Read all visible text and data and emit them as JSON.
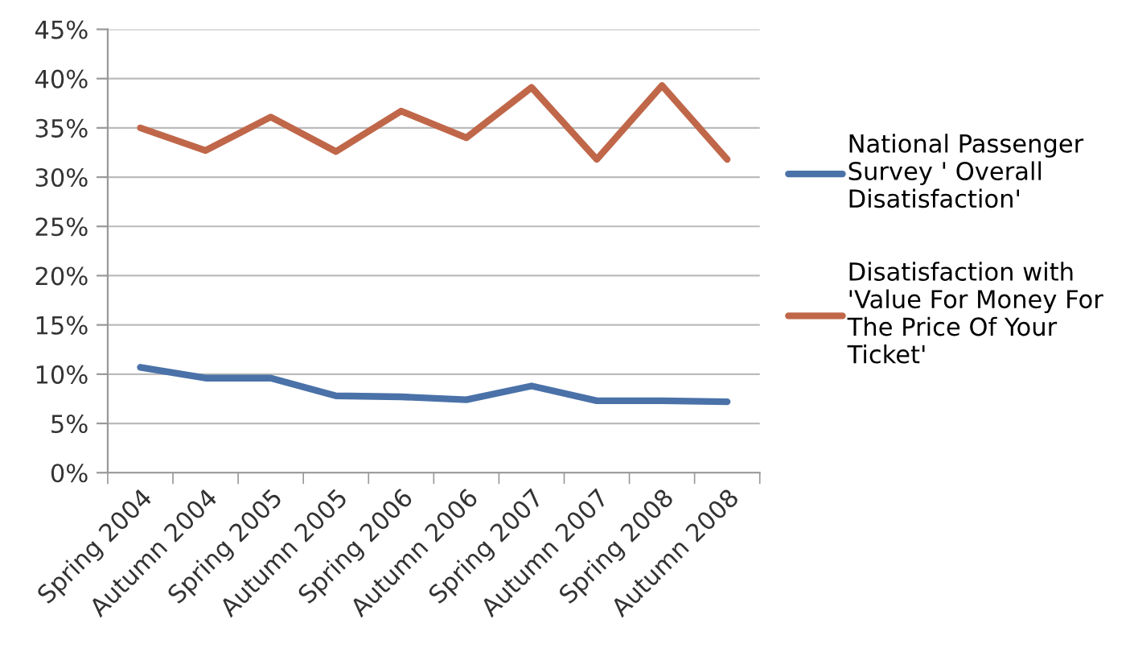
{
  "chart_data": {
    "type": "line",
    "categories": [
      "Spring 2004",
      "Autumn 2004",
      "Spring 2005",
      "Autumn 2005",
      "Spring 2006",
      "Autumn 2006",
      "Spring 2007",
      "Autumn 2007",
      "Spring 2008",
      "Autumn 2008"
    ],
    "series": [
      {
        "name": "National Passenger Survey ' Overall Disatisfaction'",
        "color": "#4a72a8",
        "values": [
          10.7,
          9.6,
          9.6,
          7.8,
          7.7,
          7.4,
          8.8,
          7.3,
          7.3,
          7.2
        ]
      },
      {
        "name": "Disatisfaction with 'Value For Money For The Price Of Your Ticket'",
        "color": "#c0674a",
        "values": [
          35.0,
          32.7,
          36.1,
          32.6,
          36.7,
          34.0,
          39.1,
          31.8,
          39.3,
          31.8
        ]
      }
    ],
    "ylim": [
      0,
      45
    ],
    "yticks": [
      {
        "value": 0,
        "label": "0%"
      },
      {
        "value": 5,
        "label": "5%"
      },
      {
        "value": 10,
        "label": "10%"
      },
      {
        "value": 15,
        "label": "15%"
      },
      {
        "value": 20,
        "label": "20%"
      },
      {
        "value": 25,
        "label": "25%"
      },
      {
        "value": 30,
        "label": "30%"
      },
      {
        "value": 35,
        "label": "35%"
      },
      {
        "value": 40,
        "label": "40%"
      },
      {
        "value": 45,
        "label": "45%"
      }
    ],
    "grid": "y",
    "legend": "right",
    "marker": "none",
    "line_style": "solid"
  }
}
